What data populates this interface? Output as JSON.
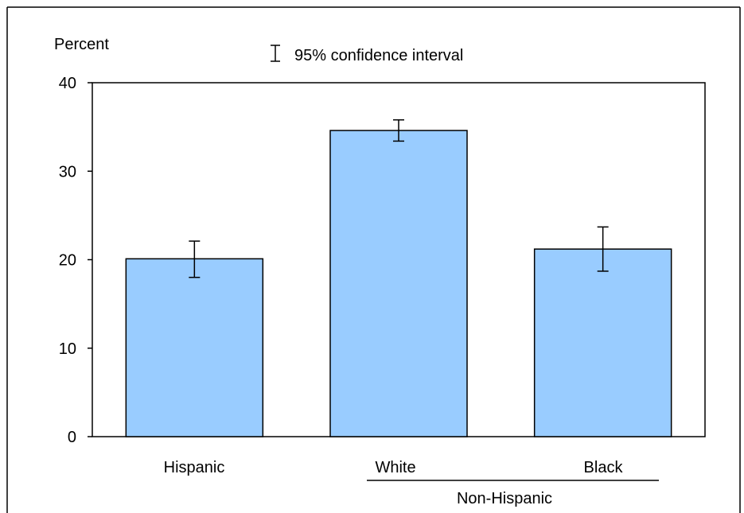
{
  "chart_data": {
    "type": "bar",
    "ylabel": "Percent",
    "legend_label": "95% confidence interval",
    "legend_placement": "top-center",
    "group_label": "Non-Hispanic",
    "group_members": [
      "White",
      "Black"
    ],
    "ylim": [
      0,
      40
    ],
    "yticks": [
      "0",
      "10",
      "20",
      "30",
      "40"
    ],
    "categories": [
      "Hispanic",
      "White",
      "Black"
    ],
    "values": [
      20.1,
      34.6,
      21.2
    ],
    "ci_lower": [
      18.0,
      33.4,
      18.7
    ],
    "ci_upper": [
      22.1,
      35.8,
      23.7
    ],
    "bar_color": "#99ccff",
    "bar_edge_color": "#000000",
    "grid": false
  }
}
